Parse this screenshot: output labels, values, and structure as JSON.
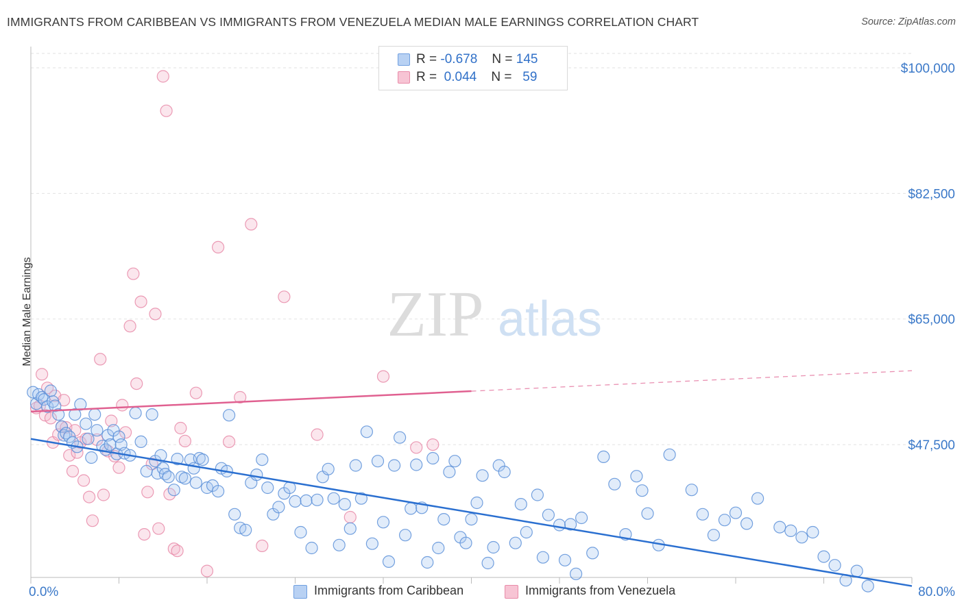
{
  "title": "IMMIGRANTS FROM CARIBBEAN VS IMMIGRANTS FROM VENEZUELA MEDIAN MALE EARNINGS CORRELATION CHART",
  "source": "Source: ZipAtlas.com",
  "watermark": {
    "zip": "ZIP",
    "atlas": "atlas"
  },
  "legend": {
    "rows": [
      {
        "r_label": "R =",
        "r_value": "-0.678",
        "n_label": "N =",
        "n_value": "145"
      },
      {
        "r_label": "R =",
        "r_value": "0.044",
        "n_label": "N =",
        "n_value": "59"
      }
    ]
  },
  "chart_data": {
    "type": "scatter",
    "ylabel": "Median Male Earnings",
    "x_tick_labels": [
      "0.0%",
      "80.0%"
    ],
    "y_tick_labels": [
      "$100,000",
      "$82,500",
      "$65,000",
      "$47,500"
    ],
    "xlim": [
      0,
      80
    ],
    "ylim": [
      29000,
      102000
    ],
    "colors": {
      "caribbean": "#5b8fd8",
      "venezuela": "#e88aa8",
      "caribbean_line": "#2a6fd0",
      "venezuela_line": "#e06090"
    },
    "series": [
      {
        "name": "Immigrants from Caribbean",
        "trend": {
          "x0": 0,
          "y0": 48300,
          "x1": 80,
          "y1": 27800,
          "solid_until": 80
        },
        "points": [
          [
            0.2,
            54800
          ],
          [
            0.5,
            53200
          ],
          [
            0.7,
            54500
          ],
          [
            1.0,
            54100
          ],
          [
            1.2,
            53800
          ],
          [
            1.5,
            52800
          ],
          [
            1.8,
            55000
          ],
          [
            2.0,
            53500
          ],
          [
            2.2,
            52900
          ],
          [
            2.5,
            51700
          ],
          [
            2.8,
            50000
          ],
          [
            3.0,
            48800
          ],
          [
            3.2,
            49100
          ],
          [
            3.5,
            48600
          ],
          [
            3.8,
            47800
          ],
          [
            4.0,
            51700
          ],
          [
            4.2,
            47200
          ],
          [
            4.5,
            53100
          ],
          [
            5.0,
            50400
          ],
          [
            5.2,
            48300
          ],
          [
            5.5,
            45700
          ],
          [
            5.8,
            51700
          ],
          [
            6.0,
            49500
          ],
          [
            6.5,
            47300
          ],
          [
            6.8,
            46800
          ],
          [
            7.0,
            48800
          ],
          [
            7.2,
            47500
          ],
          [
            7.5,
            49500
          ],
          [
            7.8,
            46200
          ],
          [
            8.0,
            48600
          ],
          [
            8.2,
            47500
          ],
          [
            8.5,
            46300
          ],
          [
            9.0,
            46000
          ],
          [
            9.5,
            51900
          ],
          [
            10.0,
            47900
          ],
          [
            10.5,
            43800
          ],
          [
            11.0,
            51700
          ],
          [
            11.3,
            45200
          ],
          [
            11.5,
            43500
          ],
          [
            11.8,
            46000
          ],
          [
            12.0,
            44200
          ],
          [
            12.2,
            43400
          ],
          [
            12.5,
            43000
          ],
          [
            13.0,
            41200
          ],
          [
            13.3,
            45500
          ],
          [
            13.7,
            43000
          ],
          [
            14.0,
            42800
          ],
          [
            14.5,
            45400
          ],
          [
            14.8,
            44200
          ],
          [
            15.0,
            42200
          ],
          [
            15.3,
            45600
          ],
          [
            15.6,
            45400
          ],
          [
            16.0,
            41500
          ],
          [
            16.5,
            41800
          ],
          [
            17.0,
            41000
          ],
          [
            17.3,
            44200
          ],
          [
            17.8,
            43800
          ],
          [
            18.0,
            51600
          ],
          [
            18.5,
            37800
          ],
          [
            19.0,
            35900
          ],
          [
            19.5,
            35600
          ],
          [
            20.0,
            42200
          ],
          [
            20.5,
            43300
          ],
          [
            21.0,
            45400
          ],
          [
            21.5,
            41500
          ],
          [
            22.0,
            37800
          ],
          [
            22.5,
            38800
          ],
          [
            23.0,
            40700
          ],
          [
            23.5,
            41500
          ],
          [
            24.0,
            39600
          ],
          [
            24.5,
            35300
          ],
          [
            25.0,
            39700
          ],
          [
            25.5,
            33100
          ],
          [
            26.0,
            39800
          ],
          [
            26.5,
            43000
          ],
          [
            27.0,
            44100
          ],
          [
            27.5,
            40000
          ],
          [
            28.0,
            33500
          ],
          [
            28.5,
            39200
          ],
          [
            29.0,
            35800
          ],
          [
            29.5,
            44600
          ],
          [
            30.0,
            40000
          ],
          [
            30.5,
            49300
          ],
          [
            31.0,
            33700
          ],
          [
            31.5,
            45200
          ],
          [
            32.0,
            36700
          ],
          [
            32.5,
            31200
          ],
          [
            33.0,
            44600
          ],
          [
            33.5,
            48500
          ],
          [
            34.0,
            34900
          ],
          [
            34.5,
            38600
          ],
          [
            35.0,
            44700
          ],
          [
            35.5,
            38700
          ],
          [
            36.0,
            31100
          ],
          [
            36.5,
            45600
          ],
          [
            37.0,
            33100
          ],
          [
            37.5,
            37100
          ],
          [
            38.0,
            43700
          ],
          [
            38.5,
            45200
          ],
          [
            39.0,
            34600
          ],
          [
            39.5,
            33800
          ],
          [
            40.0,
            37100
          ],
          [
            40.5,
            39400
          ],
          [
            41.0,
            43200
          ],
          [
            41.5,
            31000
          ],
          [
            42.0,
            33200
          ],
          [
            42.5,
            44600
          ],
          [
            43.0,
            43700
          ],
          [
            44.0,
            33800
          ],
          [
            44.5,
            39200
          ],
          [
            45.0,
            35300
          ],
          [
            46.0,
            40500
          ],
          [
            46.5,
            31800
          ],
          [
            47.0,
            37700
          ],
          [
            48.0,
            36300
          ],
          [
            48.5,
            31400
          ],
          [
            49.0,
            36400
          ],
          [
            49.5,
            29500
          ],
          [
            50.0,
            37300
          ],
          [
            51.0,
            32400
          ],
          [
            52.0,
            45800
          ],
          [
            53.0,
            42000
          ],
          [
            54.0,
            35000
          ],
          [
            55.0,
            43100
          ],
          [
            55.5,
            41100
          ],
          [
            56.0,
            37900
          ],
          [
            57.0,
            33500
          ],
          [
            58.0,
            46100
          ],
          [
            60.0,
            41200
          ],
          [
            61.0,
            37800
          ],
          [
            62.0,
            34900
          ],
          [
            63.0,
            37000
          ],
          [
            64.0,
            38000
          ],
          [
            65.0,
            36500
          ],
          [
            66.0,
            40000
          ],
          [
            68.0,
            36000
          ],
          [
            69.0,
            35500
          ],
          [
            70.0,
            34600
          ],
          [
            71.0,
            35300
          ],
          [
            72.0,
            31900
          ],
          [
            73.0,
            30700
          ],
          [
            74.0,
            28600
          ],
          [
            75.0,
            29900
          ],
          [
            76.0,
            27800
          ]
        ]
      },
      {
        "name": "Immigrants from Venezuela",
        "trend": {
          "x0": 0,
          "y0": 52100,
          "x1": 80,
          "y1": 57800,
          "solid_until": 40
        },
        "points": [
          [
            0.5,
            52600
          ],
          [
            0.8,
            52900
          ],
          [
            1.0,
            57300
          ],
          [
            1.3,
            51600
          ],
          [
            1.5,
            55400
          ],
          [
            1.8,
            51200
          ],
          [
            2.0,
            47800
          ],
          [
            2.2,
            54300
          ],
          [
            2.5,
            48900
          ],
          [
            2.8,
            50000
          ],
          [
            3.0,
            53700
          ],
          [
            3.2,
            49900
          ],
          [
            3.5,
            46000
          ],
          [
            3.8,
            43800
          ],
          [
            4.0,
            49500
          ],
          [
            4.2,
            46400
          ],
          [
            4.5,
            47800
          ],
          [
            4.8,
            42500
          ],
          [
            5.0,
            48300
          ],
          [
            5.3,
            40200
          ],
          [
            5.6,
            36900
          ],
          [
            6.0,
            48200
          ],
          [
            6.3,
            59400
          ],
          [
            6.6,
            40500
          ],
          [
            7.0,
            46600
          ],
          [
            7.3,
            50800
          ],
          [
            7.6,
            45900
          ],
          [
            8.0,
            44300
          ],
          [
            8.3,
            53000
          ],
          [
            8.6,
            49200
          ],
          [
            9.0,
            64000
          ],
          [
            9.3,
            71300
          ],
          [
            9.6,
            56000
          ],
          [
            10.0,
            67400
          ],
          [
            10.3,
            35000
          ],
          [
            10.6,
            40900
          ],
          [
            11.0,
            44800
          ],
          [
            11.3,
            65700
          ],
          [
            11.6,
            35800
          ],
          [
            12.0,
            98800
          ],
          [
            12.3,
            94000
          ],
          [
            12.6,
            40600
          ],
          [
            13.0,
            33000
          ],
          [
            13.3,
            32700
          ],
          [
            13.6,
            49800
          ],
          [
            14.0,
            48000
          ],
          [
            15.0,
            54700
          ],
          [
            16.0,
            29900
          ],
          [
            17.0,
            75000
          ],
          [
            18.0,
            47900
          ],
          [
            19.0,
            54100
          ],
          [
            20.0,
            78200
          ],
          [
            21.0,
            33400
          ],
          [
            23.0,
            68100
          ],
          [
            26.0,
            48900
          ],
          [
            29.0,
            37400
          ],
          [
            32.0,
            57000
          ],
          [
            35.0,
            47100
          ],
          [
            36.5,
            47500
          ]
        ]
      }
    ]
  }
}
